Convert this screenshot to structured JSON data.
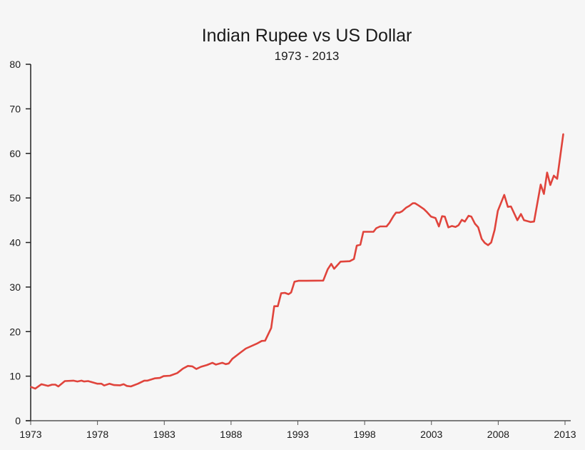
{
  "chart_data": {
    "type": "line",
    "title": "Indian Rupee vs US Dollar",
    "subtitle": "1973 - 2013",
    "xlabel": "",
    "ylabel": "",
    "xlim": [
      1973,
      2013
    ],
    "ylim": [
      0,
      80
    ],
    "grid": false,
    "line_color": "#e0443c",
    "x_ticks": [
      "1973",
      "1978",
      "1983",
      "1988",
      "1993",
      "1998",
      "2003",
      "2008",
      "2013"
    ],
    "y_ticks": [
      "0",
      "10",
      "20",
      "30",
      "40",
      "50",
      "60",
      "70",
      "80"
    ],
    "x": [
      1973.0,
      1973.34,
      1973.8,
      1974.3,
      1974.6,
      1974.85,
      1975.07,
      1975.56,
      1976.2,
      1976.5,
      1976.8,
      1977.0,
      1977.3,
      1977.65,
      1978.0,
      1978.3,
      1978.5,
      1978.9,
      1979.25,
      1979.7,
      1979.96,
      1980.2,
      1980.5,
      1981.03,
      1981.5,
      1981.74,
      1982.28,
      1982.67,
      1982.95,
      1983.43,
      1983.97,
      1984.4,
      1984.77,
      1985.1,
      1985.4,
      1985.75,
      1986.2,
      1986.6,
      1986.87,
      1987.35,
      1987.6,
      1987.83,
      1988.1,
      1988.7,
      1989.1,
      1989.4,
      1989.93,
      1990.3,
      1990.55,
      1991.0,
      1991.23,
      1991.5,
      1991.75,
      1992.03,
      1992.3,
      1992.5,
      1992.75,
      1993.05,
      1993.67,
      1994.9,
      1995.24,
      1995.5,
      1995.72,
      1996.2,
      1996.88,
      1997.2,
      1997.41,
      1997.68,
      1997.9,
      1998.66,
      1998.87,
      1999.16,
      1999.64,
      1999.85,
      2000.17,
      2000.35,
      2000.6,
      2000.8,
      2001.1,
      2001.33,
      2001.6,
      2001.78,
      2002.04,
      2002.43,
      2002.67,
      2002.97,
      2003.3,
      2003.56,
      2003.8,
      2004.0,
      2004.27,
      2004.53,
      2004.8,
      2005.03,
      2005.28,
      2005.5,
      2005.78,
      2005.99,
      2006.26,
      2006.5,
      2006.76,
      2006.99,
      2007.24,
      2007.47,
      2007.73,
      2007.97,
      2008.45,
      2008.72,
      2008.95,
      2009.43,
      2009.7,
      2009.93,
      2010.41,
      2010.68,
      2010.94,
      2011.18,
      2011.42,
      2011.66,
      2011.9,
      2012.16,
      2012.41,
      2012.87
    ],
    "series": [
      {
        "values": [
          7.6,
          7.2,
          8.2,
          7.8,
          8.1,
          8.1,
          7.7,
          8.9,
          9.0,
          8.8,
          9.0,
          8.8,
          8.9,
          8.6,
          8.3,
          8.3,
          7.9,
          8.3,
          8.0,
          7.95,
          8.2,
          7.8,
          7.7,
          8.3,
          9.0,
          9.0,
          9.5,
          9.6,
          10.0,
          10.1,
          10.7,
          11.7,
          12.3,
          12.2,
          11.6,
          12.1,
          12.5,
          13.0,
          12.6,
          13.0,
          12.7,
          12.85,
          13.9,
          15.3,
          16.2,
          16.6,
          17.3,
          17.9,
          17.95,
          20.8,
          25.7,
          25.7,
          28.6,
          28.7,
          28.4,
          28.8,
          31.2,
          31.4,
          31.4,
          31.46,
          34.0,
          35.2,
          34.1,
          35.7,
          35.8,
          36.3,
          39.3,
          39.5,
          42.4,
          42.4,
          43.2,
          43.6,
          43.6,
          44.4,
          46.0,
          46.7,
          46.7,
          47.0,
          47.8,
          48.2,
          48.8,
          48.8,
          48.3,
          47.5,
          46.8,
          45.8,
          45.5,
          43.6,
          45.9,
          45.8,
          43.4,
          43.7,
          43.5,
          43.9,
          45.1,
          44.7,
          46.0,
          45.8,
          44.2,
          43.4,
          40.8,
          39.9,
          39.4,
          40.0,
          42.8,
          47.1,
          50.7,
          48.0,
          48.1,
          45.0,
          46.4,
          45.0,
          44.6,
          44.7,
          49.0,
          53.0,
          50.9,
          55.7,
          52.9,
          55.0,
          54.3,
          64.4
        ]
      }
    ]
  }
}
